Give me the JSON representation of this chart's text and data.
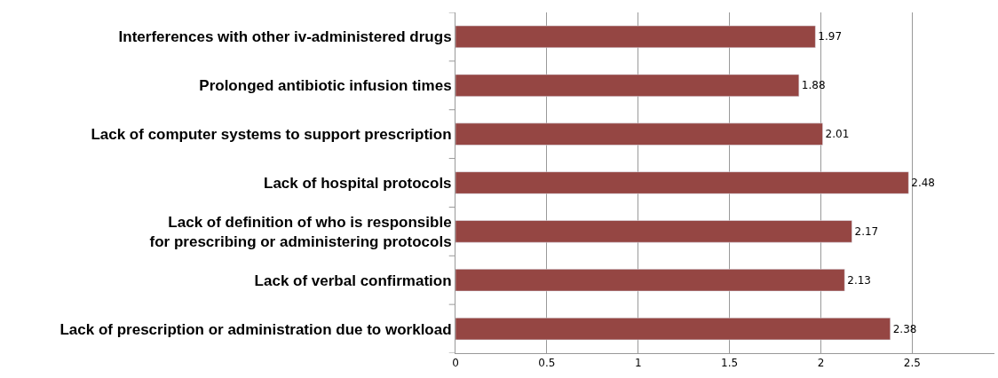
{
  "chart_data": {
    "type": "bar",
    "orientation": "horizontal",
    "categories": [
      "Interferences with other iv-administered drugs",
      "Prolonged antibiotic infusion times",
      "Lack of computer systems to support prescription",
      "Lack of hospital protocols",
      "Lack of definition of who is responsible\nfor prescribing or administering protocols",
      "Lack of verbal confirmation",
      "Lack of prescription or administration due to workload"
    ],
    "values": [
      1.97,
      1.88,
      2.01,
      2.48,
      2.17,
      2.13,
      2.38
    ],
    "color": "#954643",
    "data_labels": true,
    "xlim": [
      0,
      2.95
    ],
    "xticks": [
      0,
      0.5,
      1,
      1.5,
      2,
      2.5
    ],
    "grid": "x",
    "legend": false
  }
}
